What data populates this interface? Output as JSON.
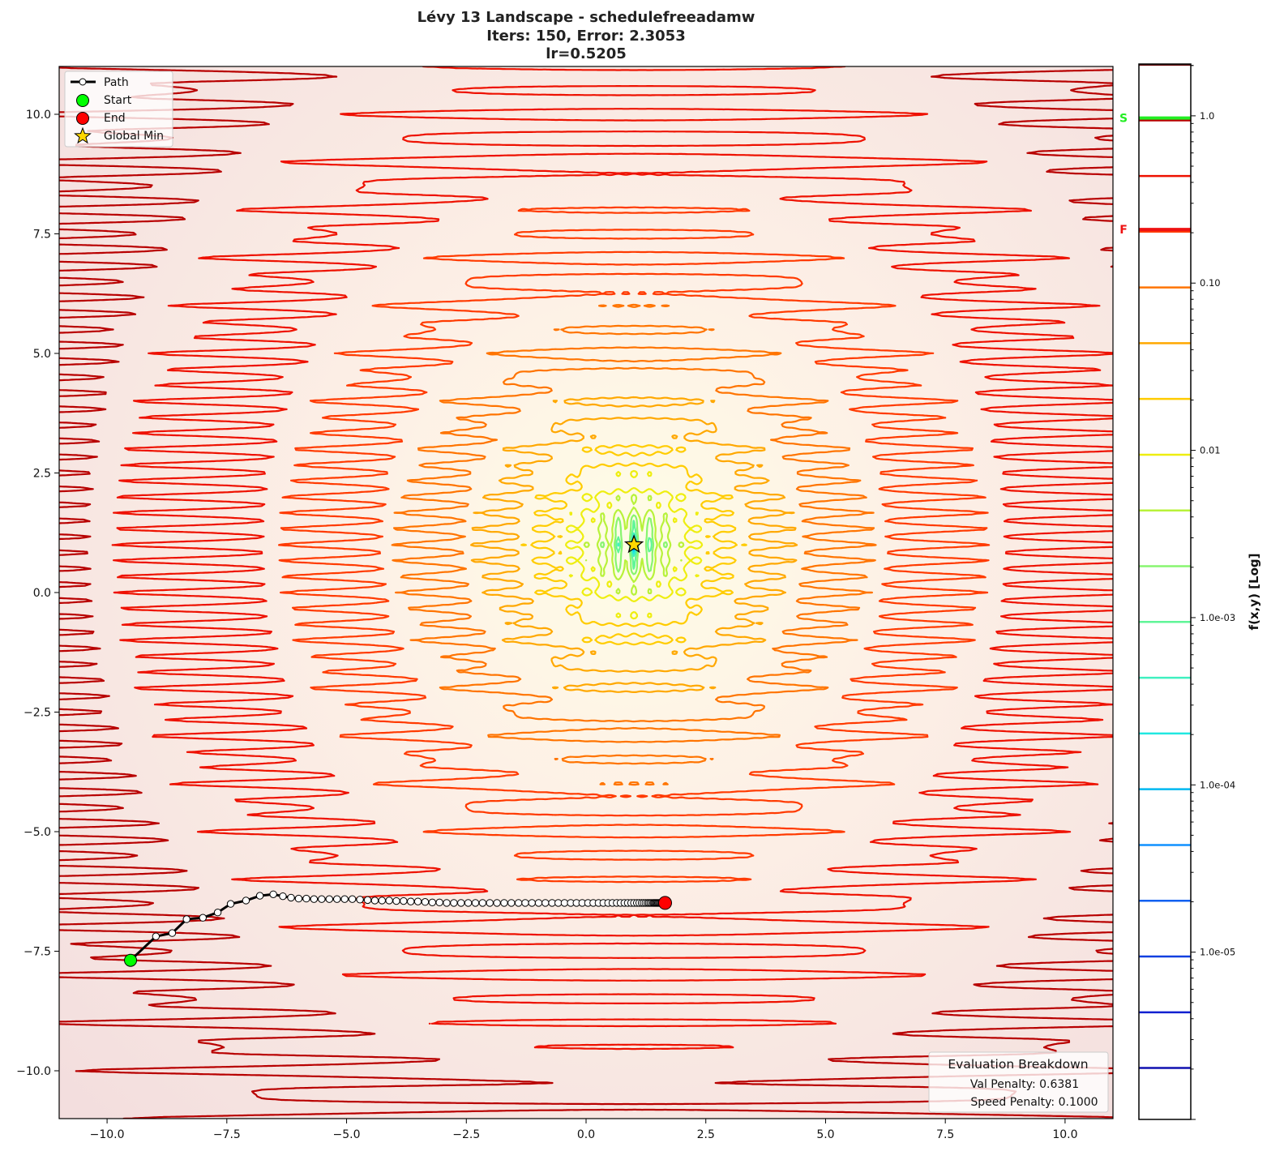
{
  "chart_data": {
    "type": "contour",
    "title": [
      "Lévy 13 Landscape - schedulefreeadamw",
      "Iters: 150, Error: 2.3053",
      "lr=0.5205"
    ],
    "xlim": [
      -11,
      11
    ],
    "ylim": [
      -11,
      11
    ],
    "x_ticks": [
      -10,
      -7.5,
      -5,
      -2.5,
      0,
      2.5,
      5,
      7.5,
      10
    ],
    "x_tick_labels": [
      "−10.0",
      "−7.5",
      "−5.0",
      "−2.5",
      "0.0",
      "2.5",
      "5.0",
      "7.5",
      "10.0"
    ],
    "y_ticks": [
      10,
      7.5,
      5,
      2.5,
      0,
      -2.5,
      -5,
      -7.5,
      -10
    ],
    "y_tick_labels": [
      "10.0",
      "7.5",
      "5.0",
      "2.5",
      "0.0",
      "−2.5",
      "−5.0",
      "−7.5",
      "−10.0"
    ],
    "grid": false,
    "function": "Lévy 13",
    "contour_levels": [
      0.94,
      0.437,
      0.203,
      0.0942,
      0.0437,
      0.0203,
      0.00942,
      0.00437,
      0.00203,
      0.000942,
      0.000437,
      0.000203,
      9.42e-05,
      4.37e-05,
      2.03e-05,
      9.42e-06,
      4.37e-06,
      2.03e-06
    ],
    "contour_colors": [
      "#b80000",
      "#ee1100",
      "#ff3a00",
      "#ff7400",
      "#ffa800",
      "#ffcc00",
      "#eeee10",
      "#b8f23a",
      "#88f570",
      "#60f598",
      "#40f0c0",
      "#20e8e0",
      "#00b8f0",
      "#1090ff",
      "#1060f0",
      "#1040e0",
      "#1020d0",
      "#1010b0"
    ],
    "path": {
      "name": "Path",
      "points": [
        [
          -9.51,
          -7.69
        ],
        [
          -8.98,
          -7.19
        ],
        [
          -8.64,
          -7.12
        ],
        [
          -8.34,
          -6.83
        ],
        [
          -8.0,
          -6.8
        ],
        [
          -7.69,
          -6.69
        ],
        [
          -7.42,
          -6.51
        ],
        [
          -7.1,
          -6.44
        ],
        [
          -6.81,
          -6.34
        ],
        [
          -6.53,
          -6.31
        ],
        [
          -6.33,
          -6.35
        ],
        [
          -6.16,
          -6.38
        ],
        [
          -6.0,
          -6.4
        ],
        [
          -5.84,
          -6.4
        ],
        [
          -5.68,
          -6.41
        ],
        [
          -5.52,
          -6.41
        ],
        [
          -5.36,
          -6.41
        ],
        [
          -5.2,
          -6.41
        ],
        [
          -5.04,
          -6.41
        ],
        [
          -4.88,
          -6.41
        ],
        [
          -4.72,
          -6.42
        ],
        [
          -4.56,
          -6.43
        ],
        [
          -4.41,
          -6.44
        ],
        [
          -4.26,
          -6.44
        ],
        [
          -4.11,
          -6.44
        ],
        [
          -3.96,
          -6.45
        ],
        [
          -3.81,
          -6.45
        ],
        [
          -3.66,
          -6.46
        ],
        [
          -3.51,
          -6.46
        ],
        [
          -3.36,
          -6.47
        ],
        [
          -3.21,
          -6.48
        ],
        [
          -3.06,
          -6.48
        ],
        [
          -2.91,
          -6.49
        ],
        [
          -2.76,
          -6.49
        ],
        [
          -2.61,
          -6.49
        ],
        [
          -2.46,
          -6.49
        ],
        [
          -2.31,
          -6.49
        ],
        [
          -2.16,
          -6.49
        ],
        [
          -2.01,
          -6.49
        ],
        [
          -1.86,
          -6.49
        ],
        [
          -1.71,
          -6.49
        ],
        [
          -1.56,
          -6.49
        ],
        [
          -1.41,
          -6.49
        ],
        [
          -1.27,
          -6.49
        ],
        [
          -1.13,
          -6.49
        ],
        [
          -0.99,
          -6.49
        ],
        [
          -0.85,
          -6.49
        ],
        [
          -0.71,
          -6.49
        ],
        [
          -0.58,
          -6.49
        ],
        [
          -0.45,
          -6.49
        ],
        [
          -0.32,
          -6.49
        ],
        [
          -0.2,
          -6.49
        ],
        [
          -0.08,
          -6.49
        ],
        [
          0.04,
          -6.49
        ],
        [
          0.15,
          -6.49
        ],
        [
          0.26,
          -6.49
        ],
        [
          0.36,
          -6.49
        ],
        [
          0.46,
          -6.49
        ],
        [
          0.55,
          -6.49
        ],
        [
          0.64,
          -6.49
        ],
        [
          0.72,
          -6.49
        ],
        [
          0.8,
          -6.49
        ],
        [
          0.87,
          -6.49
        ],
        [
          0.94,
          -6.49
        ],
        [
          1.0,
          -6.49
        ],
        [
          1.06,
          -6.49
        ],
        [
          1.11,
          -6.49
        ],
        [
          1.16,
          -6.49
        ],
        [
          1.2,
          -6.49
        ],
        [
          1.24,
          -6.49
        ],
        [
          1.28,
          -6.49
        ],
        [
          1.31,
          -6.49
        ],
        [
          1.34,
          -6.49
        ],
        [
          1.37,
          -6.49
        ],
        [
          1.4,
          -6.49
        ],
        [
          1.42,
          -6.49
        ],
        [
          1.44,
          -6.49
        ],
        [
          1.46,
          -6.49
        ],
        [
          1.48,
          -6.49
        ],
        [
          1.5,
          -6.49
        ],
        [
          1.52,
          -6.49
        ],
        [
          1.54,
          -6.49
        ],
        [
          1.56,
          -6.49
        ],
        [
          1.58,
          -6.49
        ],
        [
          1.6,
          -6.49
        ],
        [
          1.62,
          -6.49
        ],
        [
          1.64,
          -6.49
        ],
        [
          1.65,
          -6.49
        ]
      ]
    },
    "start": {
      "name": "Start",
      "x": -9.51,
      "y": -7.69,
      "color": "#00ff00"
    },
    "end": {
      "name": "End",
      "x": 1.65,
      "y": -6.49,
      "color": "#ff0000"
    },
    "global_min": {
      "name": "Global Min",
      "x": 1,
      "y": 1,
      "color": "#ffd700"
    },
    "legend": {
      "position": "top-left",
      "entries": [
        "Path",
        "Start",
        "End",
        "Global Min"
      ]
    },
    "colorbar": {
      "label": "f(x,y) [Log]",
      "scale": "log",
      "range": [
        1e-06,
        2.04
      ],
      "tick_values": [
        1.0,
        0.1,
        0.01,
        0.001,
        0.0001,
        1e-05
      ],
      "tick_labels": [
        "1.0",
        "0.10",
        "0.01",
        "1.0e-03",
        "1.0e-04",
        "1.0e-05"
      ],
      "start_marker": {
        "label": "S",
        "value": 0.97,
        "color": "#22ee22"
      },
      "final_marker": {
        "label": "F",
        "value": 0.209,
        "color": "#ee1111"
      }
    },
    "annotation": {
      "title": "Evaluation Breakdown",
      "lines": [
        "Val Penalty: 0.6381",
        "Speed Penalty: 0.1000"
      ],
      "position": "bottom-right"
    }
  }
}
